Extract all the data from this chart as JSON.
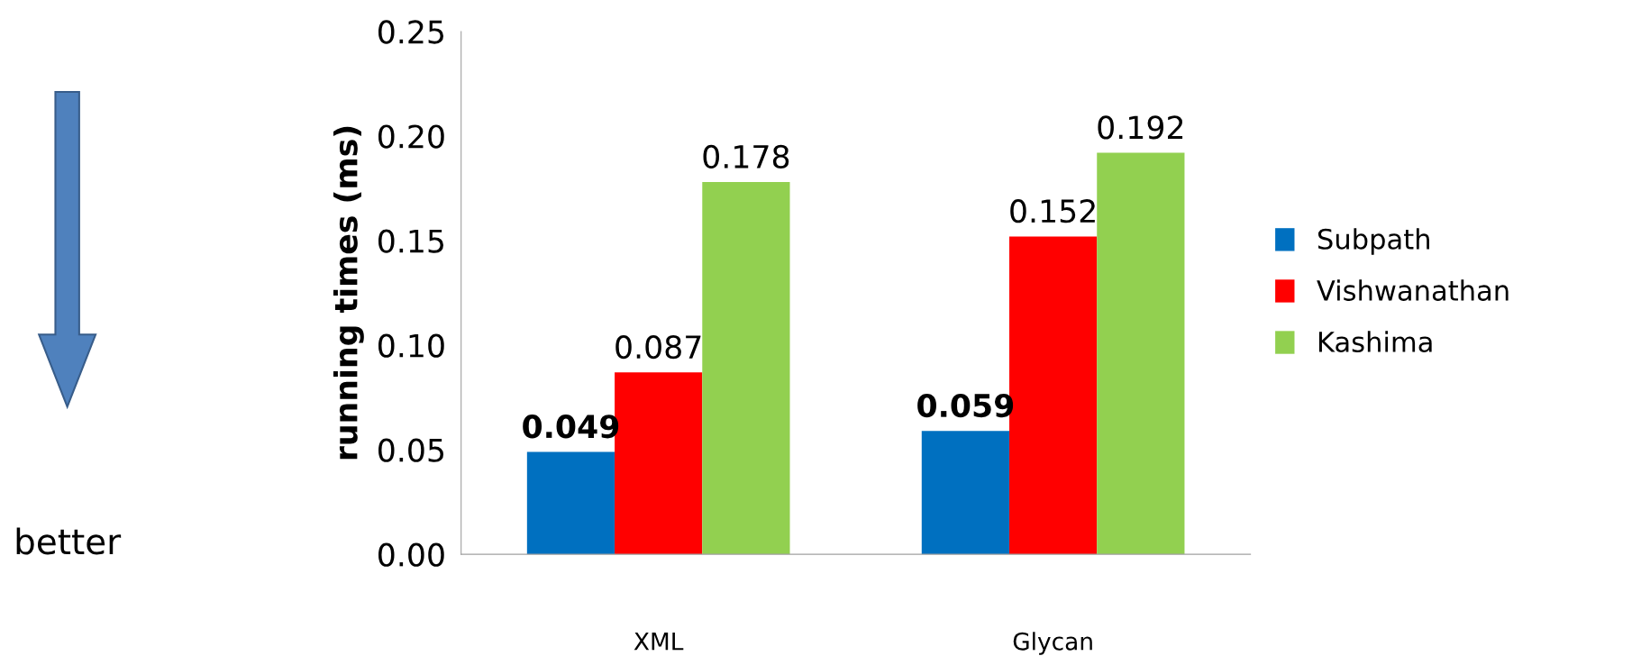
{
  "chart_data": {
    "type": "bar",
    "ylabel": "running times (ms)",
    "categories": [
      "XML",
      "Glycan"
    ],
    "series": [
      {
        "name": "Subpath",
        "color": "#0070c0",
        "values": [
          0.049,
          0.059
        ]
      },
      {
        "name": "Vishwanathan",
        "color": "#ff0000",
        "values": [
          0.087,
          0.152
        ]
      },
      {
        "name": "Kashima",
        "color": "#92d050",
        "values": [
          0.178,
          0.192
        ]
      }
    ],
    "ylim": [
      0,
      0.25
    ],
    "yticks": [
      {
        "value": 0,
        "label": "0.00"
      },
      {
        "value": 0.05,
        "label": "0.05"
      },
      {
        "value": 0.1,
        "label": "0.10"
      },
      {
        "value": 0.15,
        "label": "0.15"
      },
      {
        "value": 0.2,
        "label": "0.20"
      },
      {
        "value": 0.25,
        "label": "0.25"
      }
    ],
    "data_labels": true,
    "grid": false,
    "legend": "right",
    "annotations": [
      "better"
    ]
  }
}
